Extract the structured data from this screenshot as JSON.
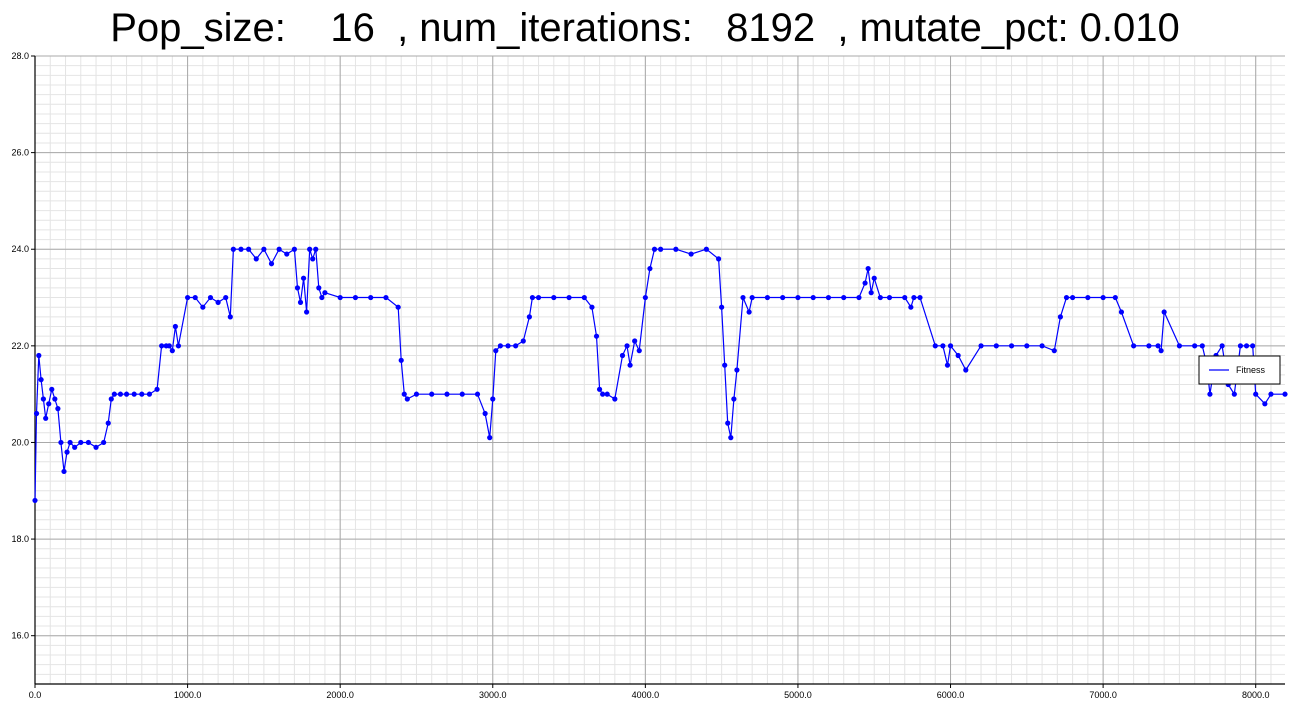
{
  "chart_data": {
    "type": "line",
    "title": "Pop_size:    16  , num_iterations:   8192  , mutate_pct: 0.010",
    "xlabel": "",
    "ylabel": "",
    "xlim": [
      0,
      8192
    ],
    "ylim": [
      15,
      28
    ],
    "x_ticks": [
      0,
      1000,
      2000,
      3000,
      4000,
      5000,
      6000,
      7000,
      8000
    ],
    "x_tick_labels": [
      "0.0",
      "1000.0",
      "2000.0",
      "3000.0",
      "4000.0",
      "5000.0",
      "6000.0",
      "7000.0",
      "8000.0"
    ],
    "y_ticks": [
      16,
      18,
      20,
      22,
      24,
      26,
      28
    ],
    "y_tick_labels": [
      "16.0",
      "18.0",
      "20.0",
      "22.0",
      "24.0",
      "26.0",
      "28.0"
    ],
    "grid": true,
    "legend_position": "right",
    "series_color": "#0000ff",
    "series": [
      {
        "name": "Fitness",
        "x": [
          0,
          10,
          25,
          40,
          55,
          70,
          90,
          110,
          130,
          150,
          170,
          190,
          210,
          230,
          260,
          300,
          350,
          400,
          450,
          480,
          500,
          520,
          560,
          600,
          650,
          700,
          750,
          800,
          830,
          860,
          880,
          900,
          920,
          940,
          1000,
          1050,
          1100,
          1150,
          1200,
          1250,
          1280,
          1300,
          1350,
          1400,
          1450,
          1500,
          1550,
          1600,
          1650,
          1700,
          1720,
          1740,
          1760,
          1780,
          1800,
          1820,
          1840,
          1860,
          1880,
          1900,
          2000,
          2100,
          2200,
          2300,
          2380,
          2400,
          2420,
          2440,
          2500,
          2600,
          2700,
          2800,
          2900,
          2950,
          2980,
          3000,
          3020,
          3050,
          3100,
          3150,
          3200,
          3240,
          3260,
          3300,
          3400,
          3500,
          3600,
          3650,
          3680,
          3700,
          3720,
          3750,
          3800,
          3850,
          3880,
          3900,
          3930,
          3960,
          4000,
          4030,
          4060,
          4100,
          4200,
          4300,
          4400,
          4480,
          4500,
          4520,
          4540,
          4560,
          4580,
          4600,
          4640,
          4680,
          4700,
          4800,
          4900,
          5000,
          5100,
          5200,
          5300,
          5400,
          5440,
          5460,
          5480,
          5500,
          5540,
          5600,
          5700,
          5740,
          5760,
          5800,
          5900,
          5950,
          5980,
          6000,
          6050,
          6100,
          6200,
          6300,
          6400,
          6500,
          6600,
          6680,
          6720,
          6760,
          6800,
          6900,
          7000,
          7080,
          7120,
          7200,
          7300,
          7360,
          7380,
          7400,
          7500,
          7600,
          7650,
          7680,
          7700,
          7740,
          7780,
          7820,
          7860,
          7900,
          7940,
          7980,
          8000,
          8060,
          8100,
          8192
        ],
        "y": [
          18.8,
          20.6,
          21.8,
          21.3,
          20.9,
          20.5,
          20.8,
          21.1,
          20.9,
          20.7,
          20.0,
          19.4,
          19.8,
          20.0,
          19.9,
          20.0,
          20.0,
          19.9,
          20.0,
          20.4,
          20.9,
          21.0,
          21.0,
          21.0,
          21.0,
          21.0,
          21.0,
          21.1,
          22.0,
          22.0,
          22.0,
          21.9,
          22.4,
          22.0,
          23.0,
          23.0,
          22.8,
          23.0,
          22.9,
          23.0,
          22.6,
          24.0,
          24.0,
          24.0,
          23.8,
          24.0,
          23.7,
          24.0,
          23.9,
          24.0,
          23.2,
          22.9,
          23.4,
          22.7,
          24.0,
          23.8,
          24.0,
          23.2,
          23.0,
          23.1,
          23.0,
          23.0,
          23.0,
          23.0,
          22.8,
          21.7,
          21.0,
          20.9,
          21.0,
          21.0,
          21.0,
          21.0,
          21.0,
          20.6,
          20.1,
          20.9,
          21.9,
          22.0,
          22.0,
          22.0,
          22.1,
          22.6,
          23.0,
          23.0,
          23.0,
          23.0,
          23.0,
          22.8,
          22.2,
          21.1,
          21.0,
          21.0,
          20.9,
          21.8,
          22.0,
          21.6,
          22.1,
          21.9,
          23.0,
          23.6,
          24.0,
          24.0,
          24.0,
          23.9,
          24.0,
          23.8,
          22.8,
          21.6,
          20.4,
          20.1,
          20.9,
          21.5,
          23.0,
          22.7,
          23.0,
          23.0,
          23.0,
          23.0,
          23.0,
          23.0,
          23.0,
          23.0,
          23.3,
          23.6,
          23.1,
          23.4,
          23.0,
          23.0,
          23.0,
          22.8,
          23.0,
          23.0,
          22.0,
          22.0,
          21.6,
          22.0,
          21.8,
          21.5,
          22.0,
          22.0,
          22.0,
          22.0,
          22.0,
          21.9,
          22.6,
          23.0,
          23.0,
          23.0,
          23.0,
          23.0,
          22.7,
          22.0,
          22.0,
          22.0,
          21.9,
          22.7,
          22.0,
          22.0,
          22.0,
          21.6,
          21.0,
          21.8,
          22.0,
          21.2,
          21.0,
          22.0,
          22.0,
          22.0,
          21.0,
          20.8,
          21.0,
          21.0
        ]
      }
    ]
  }
}
